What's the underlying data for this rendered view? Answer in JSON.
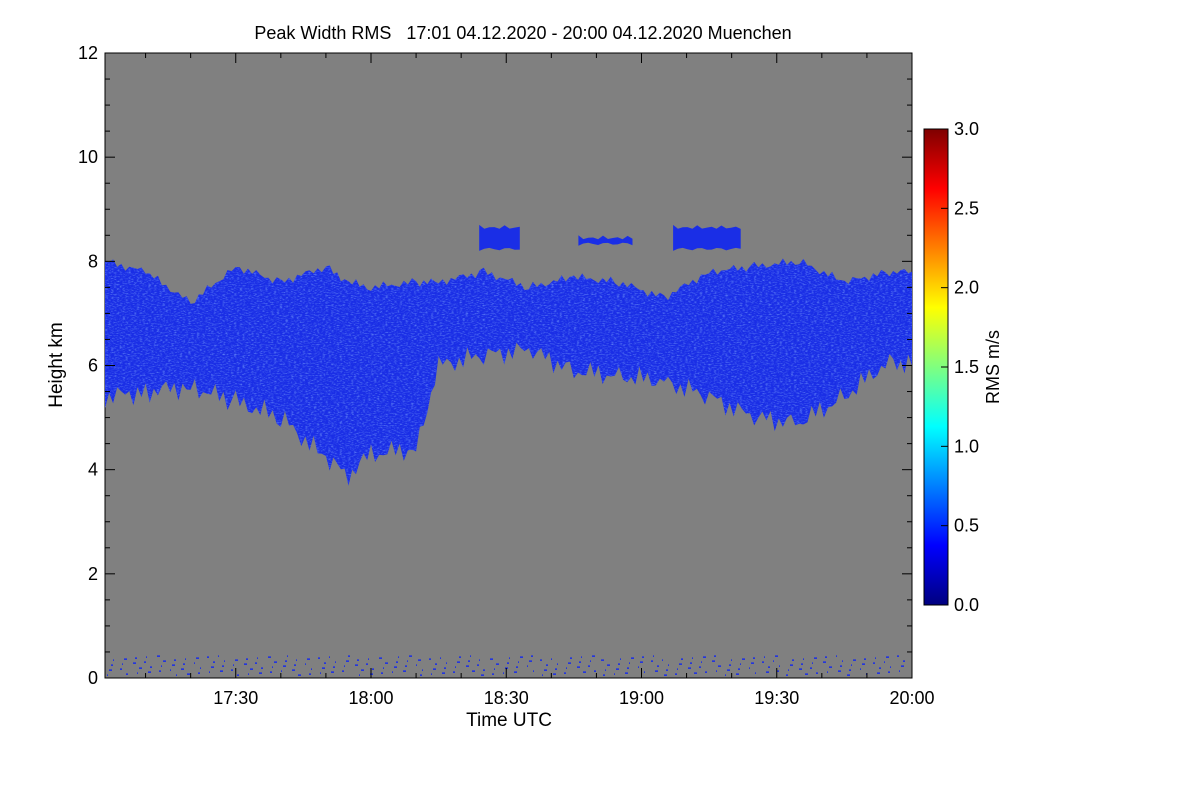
{
  "chart_data": {
    "type": "heatmap",
    "title": "Peak Width RMS   17:01 04.12.2020 - 20:00 04.12.2020 Muenchen",
    "xlabel": "Time UTC",
    "ylabel": "Height km",
    "x_start": "17:01",
    "x_end": "20:00",
    "x_ticks": [
      "17:30",
      "18:00",
      "18:30",
      "19:00",
      "19:30",
      "20:00"
    ],
    "y_ticks": [
      "0",
      "2",
      "4",
      "6",
      "8",
      "10",
      "12"
    ],
    "ylim": [
      0,
      12
    ],
    "colorbar": {
      "label": "RMS m/s",
      "range": [
        0,
        3
      ],
      "ticks": [
        "0.0",
        "0.5",
        "1.0",
        "1.5",
        "2.0",
        "2.5",
        "3.0"
      ]
    },
    "colors": {
      "background": "#808080",
      "data_main": "#1a2ee6",
      "data_light": "#3a6cff"
    },
    "cloud_layer": {
      "description_values_rms": "mostly 0.3-0.6 m/s",
      "segments": [
        {
          "time": "17:01",
          "base_km": 5.4,
          "top_km": 8.0
        },
        {
          "time": "17:10",
          "base_km": 5.5,
          "top_km": 7.8
        },
        {
          "time": "17:20",
          "base_km": 5.6,
          "top_km": 7.2
        },
        {
          "time": "17:30",
          "base_km": 5.3,
          "top_km": 7.9
        },
        {
          "time": "17:40",
          "base_km": 5.0,
          "top_km": 7.6
        },
        {
          "time": "17:50",
          "base_km": 4.2,
          "top_km": 7.9
        },
        {
          "time": "17:55",
          "base_km": 3.9,
          "top_km": 7.6
        },
        {
          "time": "18:00",
          "base_km": 4.3,
          "top_km": 7.5
        },
        {
          "time": "18:10",
          "base_km": 4.4,
          "top_km": 7.6
        },
        {
          "time": "18:15",
          "base_km": 6.0,
          "top_km": 7.6
        },
        {
          "time": "18:25",
          "base_km": 6.2,
          "top_km": 7.8
        },
        {
          "time": "18:35",
          "base_km": 6.3,
          "top_km": 7.5
        },
        {
          "time": "18:45",
          "base_km": 5.9,
          "top_km": 7.7
        },
        {
          "time": "18:55",
          "base_km": 5.8,
          "top_km": 7.6
        },
        {
          "time": "19:05",
          "base_km": 5.7,
          "top_km": 7.3
        },
        {
          "time": "19:15",
          "base_km": 5.4,
          "top_km": 7.8
        },
        {
          "time": "19:25",
          "base_km": 5.0,
          "top_km": 7.9
        },
        {
          "time": "19:35",
          "base_km": 4.9,
          "top_km": 8.0
        },
        {
          "time": "19:45",
          "base_km": 5.4,
          "top_km": 7.6
        },
        {
          "time": "19:55",
          "base_km": 6.1,
          "top_km": 7.8
        },
        {
          "time": "20:00",
          "base_km": 6.0,
          "top_km": 7.8
        }
      ]
    },
    "upper_patches": [
      {
        "time_start": "18:24",
        "time_end": "18:33",
        "base_km": 8.2,
        "top_km": 8.7
      },
      {
        "time_start": "18:46",
        "time_end": "18:58",
        "base_km": 8.3,
        "top_km": 8.5
      },
      {
        "time_start": "19:07",
        "time_end": "19:22",
        "base_km": 8.2,
        "top_km": 8.7
      }
    ]
  }
}
